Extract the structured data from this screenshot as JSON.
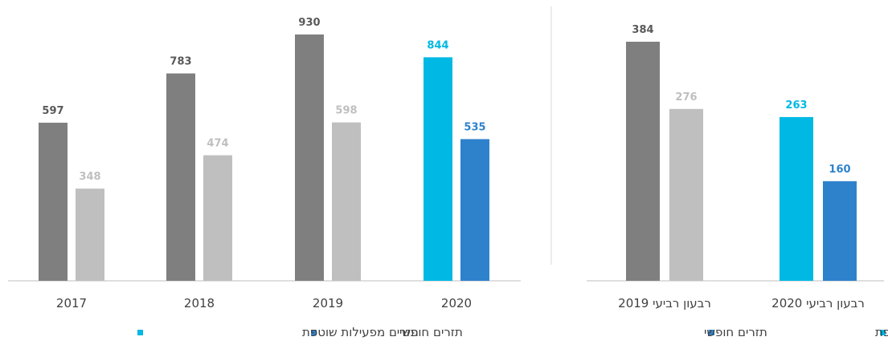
{
  "colors": {
    "dark_gray": "#7f7f7f",
    "light_gray": "#bfbfbf",
    "cyan": "#00b8e4",
    "blue": "#2e82cc",
    "axis": "#bfbfbf",
    "val_gray_dark": "#595959",
    "val_gray_light": "#bfbfbf"
  },
  "legend": {
    "right_chart": {
      "item1": "תזרים מפעילות שוטפת",
      "item2": "תזרים חופשי"
    },
    "left_chart": {
      "item1": "תזרים חופשי",
      "item2": "תזרים מפעילות שוטפת"
    }
  },
  "chart_data": [
    {
      "type": "bar",
      "categories": [
        "2017",
        "2018",
        "2019",
        "2020"
      ],
      "series": [
        {
          "name": "תזרים מפעילות שוטפת",
          "values": [
            597,
            783,
            930,
            844
          ]
        },
        {
          "name": "תזרים חופשי",
          "values": [
            348,
            474,
            598,
            535
          ]
        }
      ],
      "ylim": [
        0,
        930
      ],
      "grid": false,
      "legend_position": "bottom"
    },
    {
      "type": "bar",
      "categories": [
        "רבעון רביעי 2019",
        "רבעון רביעי 2020"
      ],
      "series": [
        {
          "name": "תזרים מפעילות שוטפת",
          "values": [
            384,
            263
          ]
        },
        {
          "name": "תזרים חופשי",
          "values": [
            276,
            160
          ]
        }
      ],
      "ylim": [
        0,
        384
      ],
      "grid": false,
      "legend_position": "bottom"
    }
  ]
}
